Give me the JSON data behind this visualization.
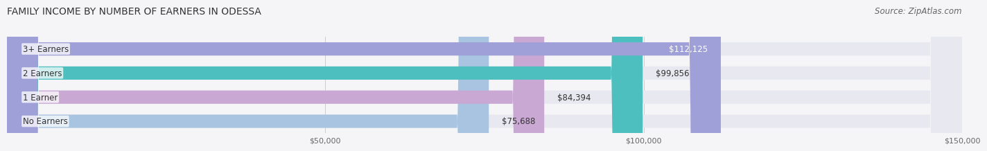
{
  "title": "FAMILY INCOME BY NUMBER OF EARNERS IN ODESSA",
  "source": "Source: ZipAtlas.com",
  "categories": [
    "No Earners",
    "1 Earner",
    "2 Earners",
    "3+ Earners"
  ],
  "values": [
    75688,
    84394,
    99856,
    112125
  ],
  "labels": [
    "$75,688",
    "$84,394",
    "$99,856",
    "$112,125"
  ],
  "bar_colors": [
    "#a8c4e0",
    "#c9a8d4",
    "#4dbfbf",
    "#a0a0d8"
  ],
  "bar_background": "#e8e8f0",
  "xlim": [
    0,
    150000
  ],
  "xticks": [
    50000,
    100000,
    150000
  ],
  "xtick_labels": [
    "$50,000",
    "$100,000",
    "$150,000"
  ],
  "title_fontsize": 10,
  "source_fontsize": 8.5,
  "label_fontsize": 8.5,
  "category_fontsize": 8.5,
  "bar_height": 0.55,
  "background_color": "#f5f5f8",
  "label_color_dark": "#333333",
  "label_color_light": "#ffffff"
}
